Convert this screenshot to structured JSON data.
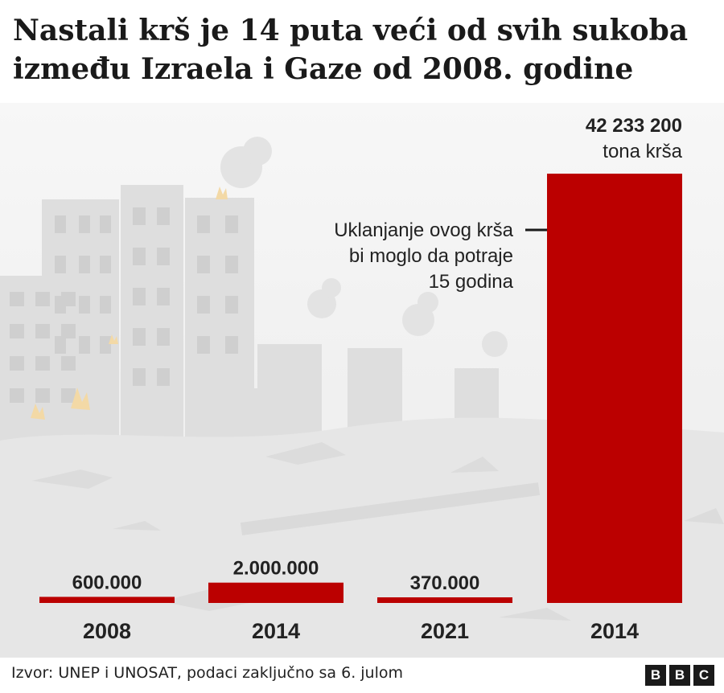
{
  "title": "Nastali krš je 14 puta veći od svih sukoba između Izraela i Gaze od 2008. godine",
  "source": "Izvor: UNEP i UNOSAT, podaci zaključno sa 6. julom",
  "logo": [
    "B",
    "B",
    "C"
  ],
  "colors": {
    "bar": "#bb0000",
    "annotation_line": "#1a1a1a",
    "text": "#222222"
  },
  "chart_data": {
    "type": "bar",
    "categories": [
      "2008",
      "2014",
      "2021",
      "2014"
    ],
    "values": [
      600000,
      2000000,
      370000,
      42233200
    ],
    "value_labels": [
      "600.000",
      "2.000.000",
      "370.000",
      "42 233 200"
    ],
    "unit_label": "tona krša",
    "annotation": [
      "Uklanjanje ovog krša",
      "bi moglo da potraje",
      "15 godina"
    ],
    "ylim": [
      0,
      42233200
    ],
    "grid": false,
    "legend": "none"
  }
}
